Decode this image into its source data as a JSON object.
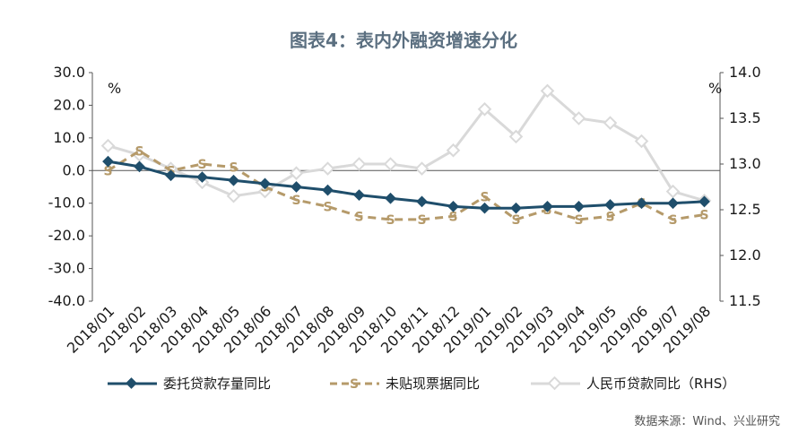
{
  "title": "图表4：表内外融资增速分化",
  "source": "数据来源：Wind、兴业研究",
  "colors": {
    "navy": "#1f4e6b",
    "tan": "#b59a6a",
    "gray": "#d9d9d9",
    "axis": "#555555"
  },
  "chart_data": {
    "type": "line",
    "categories": [
      "2018/01",
      "2018/02",
      "2018/03",
      "2018/04",
      "2018/05",
      "2018/06",
      "2018/07",
      "2018/08",
      "2018/09",
      "2018/10",
      "2018/11",
      "2018/12",
      "2019/01",
      "2019/02",
      "2019/03",
      "2019/04",
      "2019/05",
      "2019/06",
      "2019/07",
      "2019/08"
    ],
    "left_axis": {
      "unit": "%",
      "ylim": [
        -40,
        30
      ],
      "ticks": [
        "30.0",
        "20.0",
        "10.0",
        "0.0",
        "-10.0",
        "-20.0",
        "-30.0",
        "-40.0"
      ]
    },
    "right_axis": {
      "unit": "%",
      "ylim": [
        11.5,
        14.0
      ],
      "ticks": [
        "14.0",
        "13.5",
        "13.0",
        "12.5",
        "12.0",
        "11.5"
      ]
    },
    "series": [
      {
        "name": "委托贷款存量同比",
        "axis": "left",
        "style": "solid-diamond",
        "values": [
          2.8,
          1.2,
          -1.5,
          -2.0,
          -3.0,
          -4.0,
          -5.0,
          -6.0,
          -7.5,
          -8.5,
          -9.5,
          -11.0,
          -11.5,
          -11.5,
          -11.0,
          -11.0,
          -10.5,
          -10.0,
          -10.0,
          -9.5
        ]
      },
      {
        "name": "未贴现票据同比",
        "axis": "left",
        "style": "dashed-s",
        "values": [
          0.0,
          6.0,
          0.0,
          2.0,
          1.0,
          -5.0,
          -9.0,
          -11.0,
          -14.0,
          -15.0,
          -15.0,
          -14.0,
          -8.0,
          -15.0,
          -12.0,
          -15.0,
          -14.0,
          -10.0,
          -15.0,
          -13.5
        ]
      },
      {
        "name": "人民币贷款同比（RHS）",
        "axis": "right",
        "style": "solid-diamond-light",
        "values": [
          13.2,
          13.1,
          12.95,
          12.8,
          12.65,
          12.7,
          12.9,
          12.95,
          13.0,
          13.0,
          12.95,
          13.15,
          13.6,
          13.3,
          13.8,
          13.5,
          13.45,
          13.25,
          12.7,
          12.6
        ]
      }
    ]
  }
}
